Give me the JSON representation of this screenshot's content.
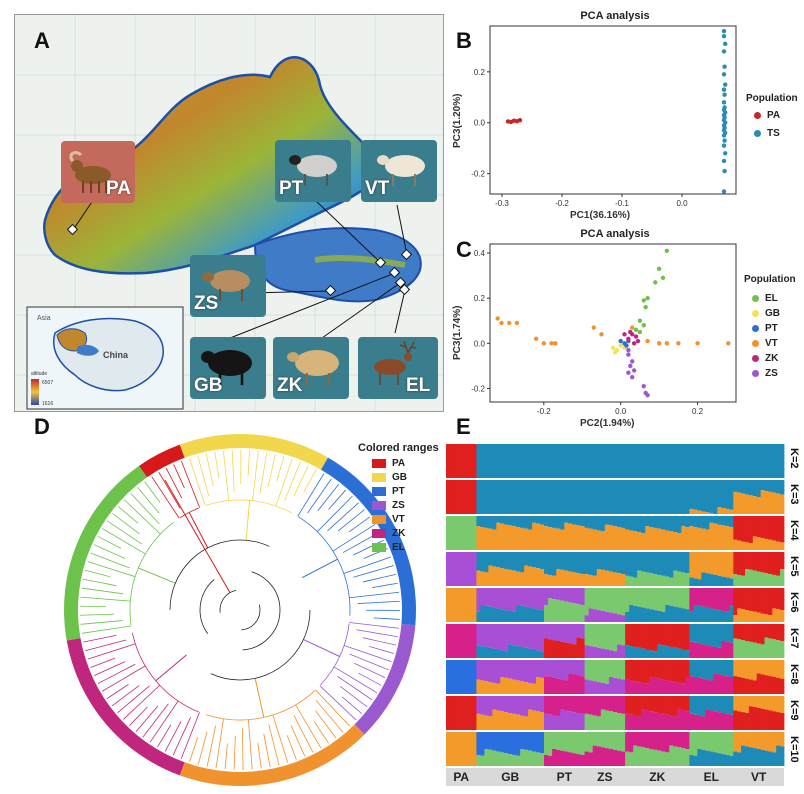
{
  "panels": {
    "a": "A",
    "b": "B",
    "c": "C",
    "d": "D",
    "e": "E"
  },
  "map": {
    "inset_label_country": "China",
    "inset_label_region": "Asia",
    "altitude_title": "altitude",
    "altitude_max": "6507",
    "altitude_min": "1616",
    "populations": [
      {
        "code": "PA",
        "color": "#c0504d"
      },
      {
        "code": "PT",
        "color": "#3a7d8c"
      },
      {
        "code": "VT",
        "color": "#3a7d8c"
      },
      {
        "code": "ZS",
        "color": "#3a7d8c"
      },
      {
        "code": "GB",
        "color": "#3a7d8c"
      },
      {
        "code": "ZK",
        "color": "#3a7d8c"
      },
      {
        "code": "EL",
        "color": "#3a7d8c"
      }
    ]
  },
  "pca_b": {
    "title": "PCA analysis",
    "xlabel": "PC1(36.16%)",
    "ylabel": "PC3(1.20%)",
    "legend_title": "Population",
    "x_ticks": [
      "-0.3",
      "-0.2",
      "-0.1",
      "0.0"
    ],
    "y_ticks": [
      "0.2",
      "0.0",
      "-0.2"
    ]
  },
  "pca_c": {
    "title": "PCA analysis",
    "xlabel": "PC2(1.94%)",
    "ylabel": "PC3(1.74%)",
    "legend_title": "Population",
    "x_ticks": [
      "-0.2",
      "0.0",
      "0.2"
    ],
    "y_ticks": [
      "0.4",
      "0.2",
      "0.0",
      "-0.2"
    ]
  },
  "tree": {
    "legend_title": "Colored ranges",
    "legend": [
      {
        "code": "PA",
        "color": "#d7191c"
      },
      {
        "code": "GB",
        "color": "#f2d64b"
      },
      {
        "code": "PT",
        "color": "#2b6fd6"
      },
      {
        "code": "ZS",
        "color": "#9b59d0"
      },
      {
        "code": "VT",
        "color": "#f0922e"
      },
      {
        "code": "ZK",
        "color": "#c0267e"
      },
      {
        "code": "EL",
        "color": "#6cc24a"
      }
    ]
  },
  "admixture": {
    "k_labels": [
      "K=2",
      "K=3",
      "K=4",
      "K=5",
      "K=6",
      "K=7",
      "K=8",
      "K=9",
      "K=10"
    ],
    "populations": [
      "PA",
      "GB",
      "PT",
      "ZS",
      "ZK",
      "EL",
      "VT"
    ]
  },
  "chart_data": [
    {
      "type": "scatter",
      "title": "PCA analysis",
      "xlabel": "PC1(36.16%)",
      "ylabel": "PC3(1.20%)",
      "xlim": [
        -0.32,
        0.09
      ],
      "ylim": [
        -0.28,
        0.38
      ],
      "legend": "right",
      "series": [
        {
          "name": "PA",
          "color": "#c62828",
          "points": [
            [
              -0.29,
              0.005
            ],
            [
              -0.285,
              0.003
            ],
            [
              -0.28,
              0.008
            ],
            [
              -0.275,
              0.006
            ],
            [
              -0.27,
              0.01
            ]
          ]
        },
        {
          "name": "TS",
          "color": "#2a8db0",
          "points": [
            [
              0.07,
              0.36
            ],
            [
              0.07,
              0.34
            ],
            [
              0.072,
              0.31
            ],
            [
              0.07,
              0.28
            ],
            [
              0.071,
              0.22
            ],
            [
              0.07,
              0.19
            ],
            [
              0.072,
              0.15
            ],
            [
              0.07,
              0.13
            ],
            [
              0.071,
              0.11
            ],
            [
              0.07,
              0.08
            ],
            [
              0.071,
              0.06
            ],
            [
              0.07,
              0.05
            ],
            [
              0.072,
              0.04
            ],
            [
              0.07,
              0.03
            ],
            [
              0.071,
              0.02
            ],
            [
              0.07,
              0.01
            ],
            [
              0.072,
              0.0
            ],
            [
              0.07,
              -0.01
            ],
            [
              0.071,
              -0.02
            ],
            [
              0.07,
              -0.03
            ],
            [
              0.072,
              -0.04
            ],
            [
              0.07,
              -0.05
            ],
            [
              0.071,
              -0.07
            ],
            [
              0.07,
              -0.09
            ],
            [
              0.072,
              -0.12
            ],
            [
              0.07,
              -0.15
            ],
            [
              0.071,
              -0.19
            ],
            [
              0.07,
              -0.27
            ]
          ]
        }
      ]
    },
    {
      "type": "scatter",
      "title": "PCA analysis",
      "xlabel": "PC2(1.94%)",
      "ylabel": "PC3(1.74%)",
      "xlim": [
        -0.34,
        0.3
      ],
      "ylim": [
        -0.26,
        0.44
      ],
      "legend": "right",
      "series": [
        {
          "name": "EL",
          "color": "#6cc24a",
          "points": [
            [
              0.12,
              0.41
            ],
            [
              0.1,
              0.33
            ],
            [
              0.11,
              0.29
            ],
            [
              0.09,
              0.27
            ],
            [
              0.07,
              0.2
            ],
            [
              0.06,
              0.19
            ],
            [
              0.065,
              0.16
            ],
            [
              0.05,
              0.1
            ],
            [
              0.06,
              0.08
            ],
            [
              0.04,
              0.06
            ],
            [
              0.05,
              0.05
            ]
          ]
        },
        {
          "name": "GB",
          "color": "#f2e35e",
          "points": [
            [
              -0.02,
              -0.02
            ],
            [
              -0.01,
              -0.03
            ],
            [
              0.0,
              -0.01
            ],
            [
              0.01,
              -0.02
            ],
            [
              -0.015,
              -0.04
            ]
          ]
        },
        {
          "name": "PT",
          "color": "#2b6fd6",
          "points": [
            [
              0.01,
              0.0
            ],
            [
              0.02,
              0.01
            ],
            [
              0.015,
              -0.01
            ],
            [
              0.0,
              0.01
            ]
          ]
        },
        {
          "name": "VT",
          "color": "#f0922e",
          "points": [
            [
              -0.32,
              0.11
            ],
            [
              -0.31,
              0.09
            ],
            [
              -0.29,
              0.09
            ],
            [
              -0.27,
              0.09
            ],
            [
              -0.22,
              0.02
            ],
            [
              -0.2,
              0.0
            ],
            [
              -0.18,
              0.0
            ],
            [
              -0.17,
              0.0
            ],
            [
              -0.07,
              0.07
            ],
            [
              -0.05,
              0.04
            ],
            [
              0.1,
              0.0
            ],
            [
              0.12,
              0.0
            ],
            [
              0.15,
              0.0
            ],
            [
              0.2,
              0.0
            ],
            [
              0.28,
              0.0
            ],
            [
              0.03,
              0.07
            ],
            [
              0.07,
              0.01
            ]
          ]
        },
        {
          "name": "ZK",
          "color": "#c0267e",
          "points": [
            [
              0.02,
              0.02
            ],
            [
              0.03,
              0.04
            ],
            [
              0.04,
              0.03
            ],
            [
              0.035,
              0.0
            ],
            [
              0.025,
              0.05
            ],
            [
              0.045,
              0.01
            ],
            [
              0.01,
              0.04
            ]
          ]
        },
        {
          "name": "ZS",
          "color": "#9b59d0",
          "points": [
            [
              0.02,
              -0.05
            ],
            [
              0.03,
              -0.08
            ],
            [
              0.025,
              -0.1
            ],
            [
              0.035,
              -0.12
            ],
            [
              0.02,
              -0.13
            ],
            [
              0.03,
              -0.15
            ],
            [
              0.06,
              -0.19
            ],
            [
              0.065,
              -0.22
            ],
            [
              0.07,
              -0.23
            ],
            [
              0.02,
              -0.03
            ]
          ]
        }
      ]
    }
  ]
}
